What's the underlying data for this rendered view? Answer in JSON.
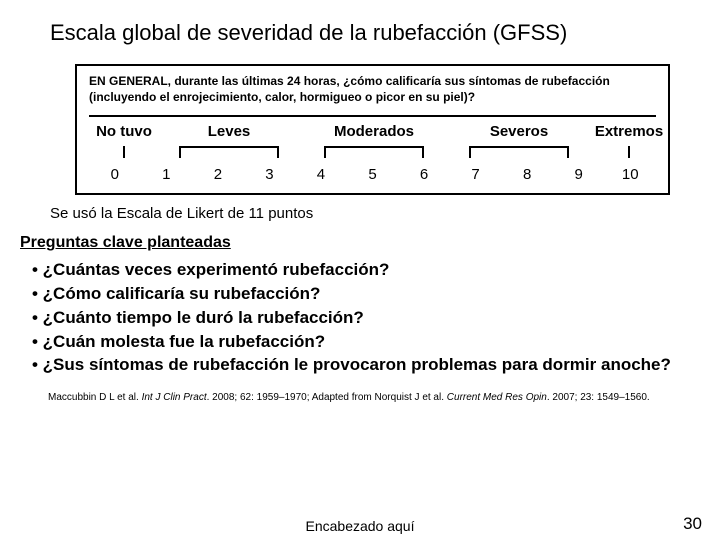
{
  "title": "Escala global de severidad de la rubefacción (GFSS)",
  "question": "EN GENERAL,  durante las últimas 24 horas, ¿cómo calificaría sus síntomas de rubefacción (incluyendo el enrojecimiento, calor, hormigueo o picor en su piel)?",
  "scale_labels": {
    "notuvo": "No tuvo",
    "leves": "Leves",
    "moderados": "Moderados",
    "severos": "Severos",
    "extremos": "Extremos"
  },
  "numbers": [
    "0",
    "1",
    "2",
    "3",
    "4",
    "5",
    "6",
    "7",
    "8",
    "9",
    "10"
  ],
  "subtitle": "Se usó la Escala de Likert de 11 puntos",
  "section_head": "Preguntas clave planteadas",
  "bullets": [
    "• ¿Cuántas veces experimentó rubefacción?",
    "• ¿Cómo calificaría su rubefacción?",
    "• ¿Cuánto tiempo le duró la rubefacción?",
    "• ¿Cuán molesta fue la rubefacción?",
    "• ¿Sus síntomas de rubefacción le provocaron problemas para dormir anoche?"
  ],
  "citation_parts": {
    "a": "Maccubbin D L et al. ",
    "j1": "Int J Clin Pract",
    "b": ". 2008; 62: 1959–1970; Adapted from Norquist J et al. ",
    "j2": "Current Med Res Opin",
    "c": ". 2007; 23: 1549–1560."
  },
  "footer": "Encabezado aquí",
  "page": "30"
}
